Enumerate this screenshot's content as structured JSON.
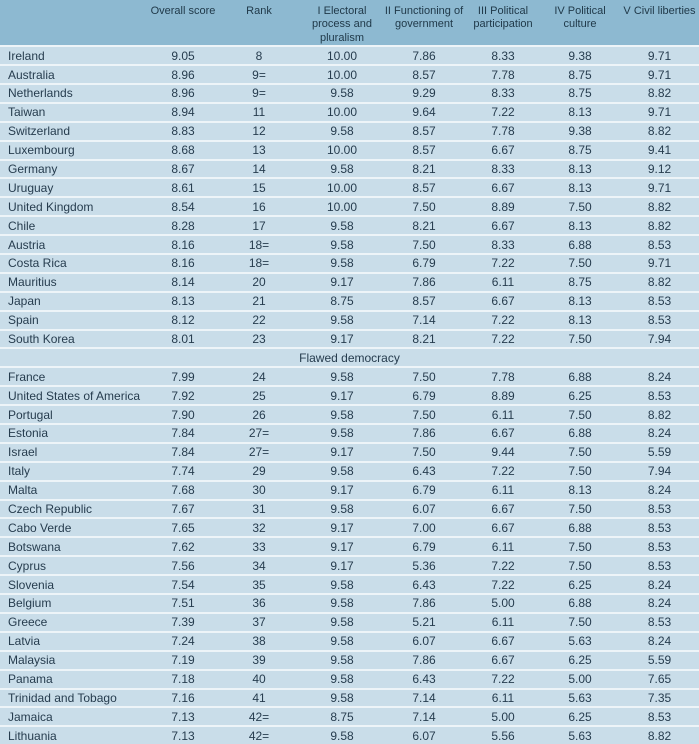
{
  "colors": {
    "header_bg": "#8db9d1",
    "row_bg": "#c9dde9",
    "separator": "#edf4f8",
    "text": "#263c4e",
    "header_text": "#1f3848"
  },
  "table": {
    "columns": [
      "",
      "Overall score",
      "Rank",
      "I Electoral\nprocess and\npluralism",
      "II Functioning of\ngovernment",
      "III Political\nparticipation",
      "IV Political\nculture",
      "V Civil liberties"
    ],
    "rows": [
      {
        "type": "country",
        "country": "Ireland",
        "values": [
          "9.05",
          "8",
          "10.00",
          "7.86",
          "8.33",
          "9.38",
          "9.71"
        ]
      },
      {
        "type": "country",
        "country": "Australia",
        "values": [
          "8.96",
          "9=",
          "10.00",
          "8.57",
          "7.78",
          "8.75",
          "9.71"
        ]
      },
      {
        "type": "country",
        "country": "Netherlands",
        "values": [
          "8.96",
          "9=",
          "9.58",
          "9.29",
          "8.33",
          "8.75",
          "8.82"
        ]
      },
      {
        "type": "country",
        "country": "Taiwan",
        "values": [
          "8.94",
          "11",
          "10.00",
          "9.64",
          "7.22",
          "8.13",
          "9.71"
        ]
      },
      {
        "type": "country",
        "country": "Switzerland",
        "values": [
          "8.83",
          "12",
          "9.58",
          "8.57",
          "7.78",
          "9.38",
          "8.82"
        ]
      },
      {
        "type": "country",
        "country": "Luxembourg",
        "values": [
          "8.68",
          "13",
          "10.00",
          "8.57",
          "6.67",
          "8.75",
          "9.41"
        ]
      },
      {
        "type": "country",
        "country": "Germany",
        "values": [
          "8.67",
          "14",
          "9.58",
          "8.21",
          "8.33",
          "8.13",
          "9.12"
        ]
      },
      {
        "type": "country",
        "country": "Uruguay",
        "values": [
          "8.61",
          "15",
          "10.00",
          "8.57",
          "6.67",
          "8.13",
          "9.71"
        ]
      },
      {
        "type": "country",
        "country": "United Kingdom",
        "values": [
          "8.54",
          "16",
          "10.00",
          "7.50",
          "8.89",
          "7.50",
          "8.82"
        ]
      },
      {
        "type": "country",
        "country": "Chile",
        "values": [
          "8.28",
          "17",
          "9.58",
          "8.21",
          "6.67",
          "8.13",
          "8.82"
        ]
      },
      {
        "type": "country",
        "country": "Austria",
        "values": [
          "8.16",
          "18=",
          "9.58",
          "7.50",
          "8.33",
          "6.88",
          "8.53"
        ]
      },
      {
        "type": "country",
        "country": "Costa Rica",
        "values": [
          "8.16",
          "18=",
          "9.58",
          "6.79",
          "7.22",
          "7.50",
          "9.71"
        ]
      },
      {
        "type": "country",
        "country": "Mauritius",
        "values": [
          "8.14",
          "20",
          "9.17",
          "7.86",
          "6.11",
          "8.75",
          "8.82"
        ]
      },
      {
        "type": "country",
        "country": "Japan",
        "values": [
          "8.13",
          "21",
          "8.75",
          "8.57",
          "6.67",
          "8.13",
          "8.53"
        ]
      },
      {
        "type": "country",
        "country": "Spain",
        "values": [
          "8.12",
          "22",
          "9.58",
          "7.14",
          "7.22",
          "8.13",
          "8.53"
        ]
      },
      {
        "type": "country",
        "country": "South Korea",
        "values": [
          "8.01",
          "23",
          "9.17",
          "8.21",
          "7.22",
          "7.50",
          "7.94"
        ]
      },
      {
        "type": "section",
        "label": "Flawed democracy"
      },
      {
        "type": "country",
        "country": "France",
        "values": [
          "7.99",
          "24",
          "9.58",
          "7.50",
          "7.78",
          "6.88",
          "8.24"
        ]
      },
      {
        "type": "country",
        "country": "United States of America",
        "values": [
          "7.92",
          "25",
          "9.17",
          "6.79",
          "8.89",
          "6.25",
          "8.53"
        ]
      },
      {
        "type": "country",
        "country": "Portugal",
        "values": [
          "7.90",
          "26",
          "9.58",
          "7.50",
          "6.11",
          "7.50",
          "8.82"
        ]
      },
      {
        "type": "country",
        "country": "Estonia",
        "values": [
          "7.84",
          "27=",
          "9.58",
          "7.86",
          "6.67",
          "6.88",
          "8.24"
        ]
      },
      {
        "type": "country",
        "country": "Israel",
        "values": [
          "7.84",
          "27=",
          "9.17",
          "7.50",
          "9.44",
          "7.50",
          "5.59"
        ]
      },
      {
        "type": "country",
        "country": "Italy",
        "values": [
          "7.74",
          "29",
          "9.58",
          "6.43",
          "7.22",
          "7.50",
          "7.94"
        ]
      },
      {
        "type": "country",
        "country": "Malta",
        "values": [
          "7.68",
          "30",
          "9.17",
          "6.79",
          "6.11",
          "8.13",
          "8.24"
        ]
      },
      {
        "type": "country",
        "country": "Czech Republic",
        "values": [
          "7.67",
          "31",
          "9.58",
          "6.07",
          "6.67",
          "7.50",
          "8.53"
        ]
      },
      {
        "type": "country",
        "country": "Cabo Verde",
        "values": [
          "7.65",
          "32",
          "9.17",
          "7.00",
          "6.67",
          "6.88",
          "8.53"
        ]
      },
      {
        "type": "country",
        "country": "Botswana",
        "values": [
          "7.62",
          "33",
          "9.17",
          "6.79",
          "6.11",
          "7.50",
          "8.53"
        ]
      },
      {
        "type": "country",
        "country": "Cyprus",
        "values": [
          "7.56",
          "34",
          "9.17",
          "5.36",
          "7.22",
          "7.50",
          "8.53"
        ]
      },
      {
        "type": "country",
        "country": "Slovenia",
        "values": [
          "7.54",
          "35",
          "9.58",
          "6.43",
          "7.22",
          "6.25",
          "8.24"
        ]
      },
      {
        "type": "country",
        "country": "Belgium",
        "values": [
          "7.51",
          "36",
          "9.58",
          "7.86",
          "5.00",
          "6.88",
          "8.24"
        ]
      },
      {
        "type": "country",
        "country": "Greece",
        "values": [
          "7.39",
          "37",
          "9.58",
          "5.21",
          "6.11",
          "7.50",
          "8.53"
        ]
      },
      {
        "type": "country",
        "country": "Latvia",
        "values": [
          "7.24",
          "38",
          "9.58",
          "6.07",
          "6.67",
          "5.63",
          "8.24"
        ]
      },
      {
        "type": "country",
        "country": "Malaysia",
        "values": [
          "7.19",
          "39",
          "9.58",
          "7.86",
          "6.67",
          "6.25",
          "5.59"
        ]
      },
      {
        "type": "country",
        "country": "Panama",
        "values": [
          "7.18",
          "40",
          "9.58",
          "6.43",
          "7.22",
          "5.00",
          "7.65"
        ]
      },
      {
        "type": "country",
        "country": "Trinidad and Tobago",
        "values": [
          "7.16",
          "41",
          "9.58",
          "7.14",
          "6.11",
          "5.63",
          "7.35"
        ]
      },
      {
        "type": "country",
        "country": "Jamaica",
        "values": [
          "7.13",
          "42=",
          "8.75",
          "7.14",
          "5.00",
          "6.25",
          "8.53"
        ]
      },
      {
        "type": "country",
        "country": "Lithuania",
        "values": [
          "7.13",
          "42=",
          "9.58",
          "6.07",
          "5.56",
          "5.63",
          "8.82"
        ]
      }
    ]
  }
}
